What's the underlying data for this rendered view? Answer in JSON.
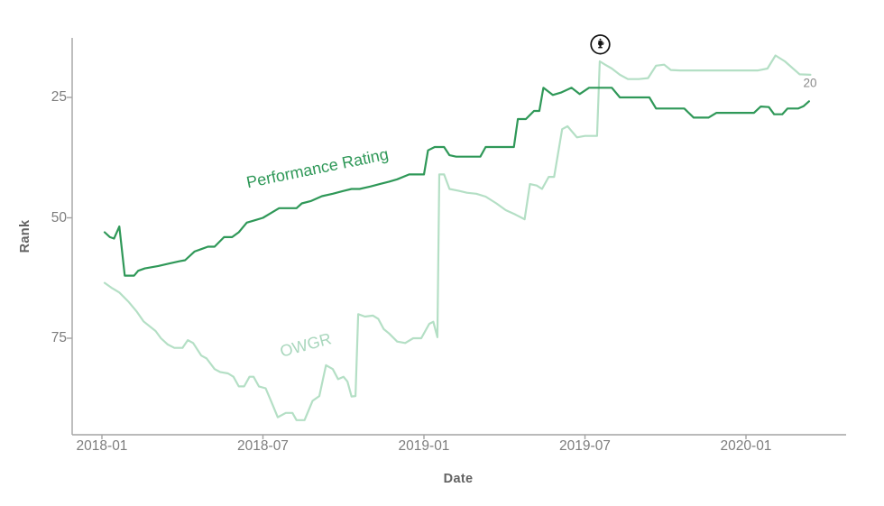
{
  "chart_data": {
    "type": "line",
    "title": "",
    "xlabel": "Date",
    "ylabel": "Rank",
    "y_axis_inverted": true,
    "x_unit": "months_since_2018_01",
    "x_tick_months": [
      0,
      6,
      12,
      18,
      24
    ],
    "x_tick_labels": [
      "2018-01",
      "2018-07",
      "2019-01",
      "2019-07",
      "2020-01"
    ],
    "y_tick_ranks": [
      25,
      50,
      75
    ],
    "y_tick_labels": [
      "25",
      "50",
      "75"
    ],
    "grid": false,
    "legend": "inline-rotated-labels",
    "series": [
      {
        "name": "OWGR",
        "color": "#b4dfc5",
        "points": [
          [
            0.1,
            63.5
          ],
          [
            0.35,
            64.5
          ],
          [
            0.65,
            65.5
          ],
          [
            1.0,
            67.5
          ],
          [
            1.3,
            69.5
          ],
          [
            1.55,
            71.5
          ],
          [
            2.0,
            73.5
          ],
          [
            2.2,
            75
          ],
          [
            2.45,
            76.3
          ],
          [
            2.7,
            77
          ],
          [
            3.0,
            77
          ],
          [
            3.2,
            75.4
          ],
          [
            3.4,
            76
          ],
          [
            3.7,
            78.6
          ],
          [
            3.9,
            79.2
          ],
          [
            4.2,
            81.4
          ],
          [
            4.4,
            82
          ],
          [
            4.7,
            82.3
          ],
          [
            4.9,
            83
          ],
          [
            5.1,
            85
          ],
          [
            5.3,
            85
          ],
          [
            5.5,
            83
          ],
          [
            5.65,
            83
          ],
          [
            5.85,
            85
          ],
          [
            6.1,
            85.4
          ],
          [
            6.3,
            88
          ],
          [
            6.55,
            91.4
          ],
          [
            6.85,
            90.5
          ],
          [
            7.1,
            90.5
          ],
          [
            7.25,
            92
          ],
          [
            7.55,
            92
          ],
          [
            7.85,
            88
          ],
          [
            8.1,
            87
          ],
          [
            8.35,
            80.6
          ],
          [
            8.6,
            81.4
          ],
          [
            8.8,
            83.5
          ],
          [
            9.0,
            83
          ],
          [
            9.15,
            84
          ],
          [
            9.3,
            87.1
          ],
          [
            9.45,
            87
          ],
          [
            9.55,
            70
          ],
          [
            9.8,
            70.5
          ],
          [
            10.1,
            70.3
          ],
          [
            10.3,
            71
          ],
          [
            10.5,
            73.1
          ],
          [
            10.7,
            74
          ],
          [
            11.0,
            75.7
          ],
          [
            11.3,
            76
          ],
          [
            11.6,
            75
          ],
          [
            11.9,
            75
          ],
          [
            12.2,
            72
          ],
          [
            12.35,
            71.6
          ],
          [
            12.5,
            74.8
          ],
          [
            12.57,
            41
          ],
          [
            12.75,
            41
          ],
          [
            12.95,
            44
          ],
          [
            13.3,
            44.4
          ],
          [
            13.6,
            44.8
          ],
          [
            13.95,
            45
          ],
          [
            14.3,
            45.6
          ],
          [
            14.7,
            47
          ],
          [
            15.05,
            48.4
          ],
          [
            15.4,
            49.3
          ],
          [
            15.75,
            50.3
          ],
          [
            15.95,
            43
          ],
          [
            16.2,
            43.3
          ],
          [
            16.4,
            44
          ],
          [
            16.65,
            41.5
          ],
          [
            16.85,
            41.5
          ],
          [
            17.15,
            31.6
          ],
          [
            17.35,
            31
          ],
          [
            17.7,
            33.3
          ],
          [
            18.0,
            33
          ],
          [
            18.45,
            33
          ],
          [
            18.55,
            17.5
          ],
          [
            18.75,
            18.2
          ],
          [
            19.0,
            19
          ],
          [
            19.3,
            20.3
          ],
          [
            19.6,
            21.2
          ],
          [
            20.0,
            21.2
          ],
          [
            20.35,
            21
          ],
          [
            20.65,
            18.4
          ],
          [
            20.95,
            18.2
          ],
          [
            21.2,
            19.3
          ],
          [
            21.55,
            19.4
          ],
          [
            24.45,
            19.4
          ],
          [
            24.8,
            19
          ],
          [
            25.1,
            16.3
          ],
          [
            25.45,
            17.5
          ],
          [
            26.0,
            20.2
          ],
          [
            26.4,
            20.3
          ]
        ],
        "end_value_label": "20"
      },
      {
        "name": "Performance Rating",
        "color": "#2f9858",
        "points": [
          [
            0.1,
            53
          ],
          [
            0.3,
            54
          ],
          [
            0.45,
            54.3
          ],
          [
            0.65,
            51.8
          ],
          [
            0.85,
            62
          ],
          [
            1.2,
            62
          ],
          [
            1.35,
            61
          ],
          [
            1.6,
            60.5
          ],
          [
            2.1,
            60
          ],
          [
            2.5,
            59.5
          ],
          [
            2.9,
            59
          ],
          [
            3.1,
            58.8
          ],
          [
            3.45,
            57
          ],
          [
            3.7,
            56.5
          ],
          [
            3.95,
            56
          ],
          [
            4.2,
            56
          ],
          [
            4.55,
            54
          ],
          [
            4.85,
            54
          ],
          [
            5.1,
            53
          ],
          [
            5.4,
            51
          ],
          [
            5.7,
            50.5
          ],
          [
            6.0,
            50
          ],
          [
            6.3,
            49
          ],
          [
            6.6,
            48
          ],
          [
            7.25,
            48
          ],
          [
            7.45,
            47
          ],
          [
            7.8,
            46.5
          ],
          [
            8.2,
            45.5
          ],
          [
            8.6,
            45
          ],
          [
            8.95,
            44.5
          ],
          [
            9.3,
            44
          ],
          [
            9.6,
            44
          ],
          [
            10.0,
            43.5
          ],
          [
            10.35,
            43
          ],
          [
            10.7,
            42.5
          ],
          [
            11.0,
            42
          ],
          [
            11.45,
            41
          ],
          [
            12.0,
            41
          ],
          [
            12.15,
            36
          ],
          [
            12.4,
            35.3
          ],
          [
            12.75,
            35.3
          ],
          [
            12.95,
            37
          ],
          [
            13.2,
            37.3
          ],
          [
            14.1,
            37.3
          ],
          [
            14.3,
            35.3
          ],
          [
            15.35,
            35.3
          ],
          [
            15.5,
            29.5
          ],
          [
            15.8,
            29.5
          ],
          [
            16.1,
            27.8
          ],
          [
            16.3,
            27.8
          ],
          [
            16.45,
            23
          ],
          [
            16.8,
            24.5
          ],
          [
            17.1,
            24
          ],
          [
            17.5,
            23
          ],
          [
            17.8,
            24.3
          ],
          [
            18.15,
            23
          ],
          [
            19.0,
            23
          ],
          [
            19.3,
            25
          ],
          [
            20.4,
            25
          ],
          [
            20.65,
            27.3
          ],
          [
            21.7,
            27.3
          ],
          [
            22.05,
            29.2
          ],
          [
            22.6,
            29.2
          ],
          [
            22.9,
            28.2
          ],
          [
            24.3,
            28.2
          ],
          [
            24.55,
            26.9
          ],
          [
            24.85,
            27
          ],
          [
            25.05,
            28.5
          ],
          [
            25.35,
            28.5
          ],
          [
            25.55,
            27.3
          ],
          [
            25.95,
            27.3
          ],
          [
            26.15,
            26.8
          ],
          [
            26.35,
            25.8
          ]
        ]
      }
    ],
    "annotation_icon": {
      "name": "open-championship-claret-jug-icon",
      "months": 18.57,
      "rank": 14
    }
  }
}
